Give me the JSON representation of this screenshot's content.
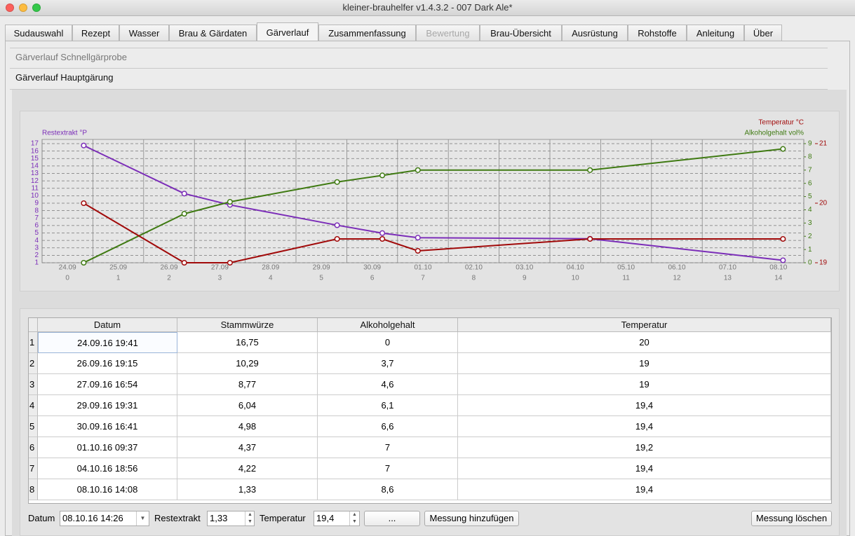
{
  "window": {
    "title": "kleiner-brauhelfer v1.4.3.2 - 007 Dark Ale*"
  },
  "tabs": {
    "labels": [
      "Sudauswahl",
      "Rezept",
      "Wasser",
      "Brau & Gärdaten",
      "Gärverlauf",
      "Zusammenfassung",
      "Bewertung",
      "Brau-Übersicht",
      "Ausrüstung",
      "Rohstoffe",
      "Anleitung",
      "Über"
    ],
    "active": 4,
    "disabled": [
      6
    ]
  },
  "sections": [
    "Gärverlauf Schnellgärprobe",
    "Gärverlauf Hauptgärung"
  ],
  "chart_data": {
    "type": "line",
    "x": [
      0.82,
      2.8,
      3.7,
      5.81,
      6.7,
      7.4,
      10.79,
      14.59
    ],
    "xlim": [
      0,
      15
    ],
    "xticks": [
      0,
      1,
      2,
      3,
      4,
      5,
      6,
      7,
      8,
      9,
      10,
      11,
      12,
      13,
      14,
      15
    ],
    "date_labels": [
      "24.09",
      "25.09",
      "26.09",
      "27.09",
      "28.09",
      "29.09",
      "30.09",
      "01.10",
      "02.10",
      "03.10",
      "04.10",
      "05.10",
      "06.10",
      "07.10",
      "08.10"
    ],
    "day_labels": [
      0,
      1,
      2,
      3,
      4,
      5,
      6,
      7,
      8,
      9,
      10,
      11,
      12,
      13,
      14
    ],
    "ylim": [
      1,
      17
    ],
    "yticks": [
      1,
      2,
      3,
      4,
      5,
      6,
      7,
      8,
      9,
      10,
      11,
      12,
      13,
      14,
      15,
      16,
      17
    ],
    "y2lim": [
      0,
      9
    ],
    "y2ticks": [
      0,
      1,
      2,
      3,
      4,
      5,
      6,
      7,
      8,
      9
    ],
    "y3lim": [
      19,
      21
    ],
    "y3ticks": [
      19,
      20,
      21
    ],
    "grid": true,
    "series": [
      {
        "name": "Restextrakt °P",
        "color": "#7b2db8",
        "axis": "y",
        "values": [
          16.75,
          10.29,
          8.77,
          6.04,
          4.98,
          4.37,
          4.22,
          1.33
        ]
      },
      {
        "name": "Alkoholgehalt vol%",
        "color": "#3f7a12",
        "axis": "y2",
        "values": [
          0,
          3.7,
          4.6,
          6.1,
          6.6,
          7,
          7,
          8.6
        ]
      },
      {
        "name": "Temperatur °C",
        "color": "#a10a0a",
        "axis": "y3",
        "values": [
          20,
          19,
          19,
          19.4,
          19.4,
          19.2,
          19.4,
          19.4
        ]
      }
    ]
  },
  "table": {
    "headers": [
      "Datum",
      "Stammwürze",
      "Alkoholgehalt",
      "Temperatur"
    ],
    "row_numbers": [
      1,
      2,
      3,
      4,
      5,
      6,
      7,
      8
    ],
    "rows": [
      [
        "24.09.16 19:41",
        "16,75",
        "0",
        "20"
      ],
      [
        "26.09.16 19:15",
        "10,29",
        "3,7",
        "19"
      ],
      [
        "27.09.16 16:54",
        "8,77",
        "4,6",
        "19"
      ],
      [
        "29.09.16 19:31",
        "6,04",
        "6,1",
        "19,4"
      ],
      [
        "30.09.16 16:41",
        "4,98",
        "6,6",
        "19,4"
      ],
      [
        "01.10.16 09:37",
        "4,37",
        "7",
        "19,2"
      ],
      [
        "04.10.16 18:56",
        "4,22",
        "7",
        "19,4"
      ],
      [
        "08.10.16 14:08",
        "1,33",
        "8,6",
        "19,4"
      ]
    ]
  },
  "controls": {
    "date_label": "Datum",
    "date_value": "08.10.16 14:26",
    "extract_label": "Restextrakt",
    "extract_value": "1,33",
    "temp_label": "Temperatur",
    "temp_value": "19,4",
    "more_button": "...",
    "add_button": "Messung hinzufügen",
    "delete_button": "Messung löschen"
  }
}
